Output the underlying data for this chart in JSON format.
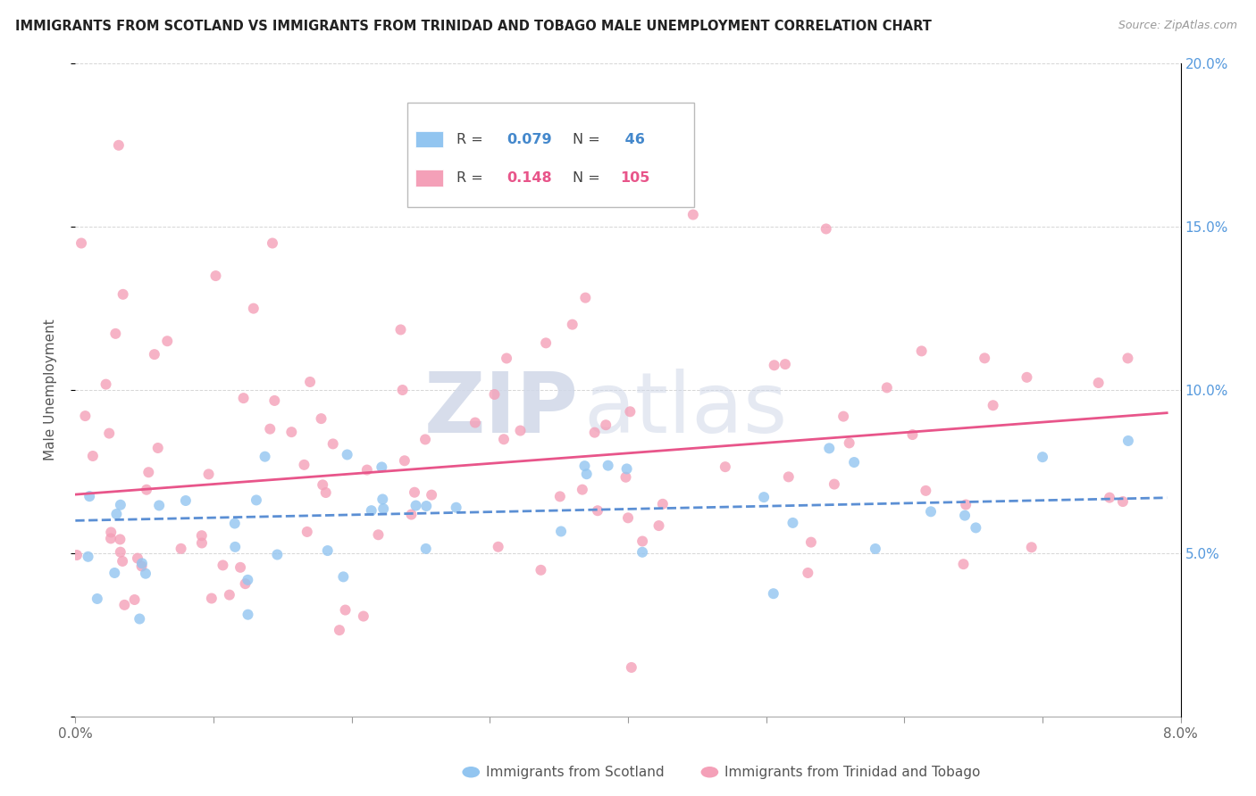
{
  "title": "IMMIGRANTS FROM SCOTLAND VS IMMIGRANTS FROM TRINIDAD AND TOBAGO MALE UNEMPLOYMENT CORRELATION CHART",
  "source": "Source: ZipAtlas.com",
  "ylabel_label": "Male Unemployment",
  "x_min": 0.0,
  "x_max": 0.08,
  "y_min": 0.0,
  "y_max": 0.2,
  "legend_r1": "0.079",
  "legend_n1": "46",
  "legend_r2": "0.148",
  "legend_n2": "105",
  "color_scotland": "#92C5F0",
  "color_trinidad": "#F4A0B8",
  "color_line_scotland": "#5B8FD4",
  "color_line_trinidad": "#E8558A",
  "watermark_zip": "ZIP",
  "watermark_atlas": "atlas"
}
